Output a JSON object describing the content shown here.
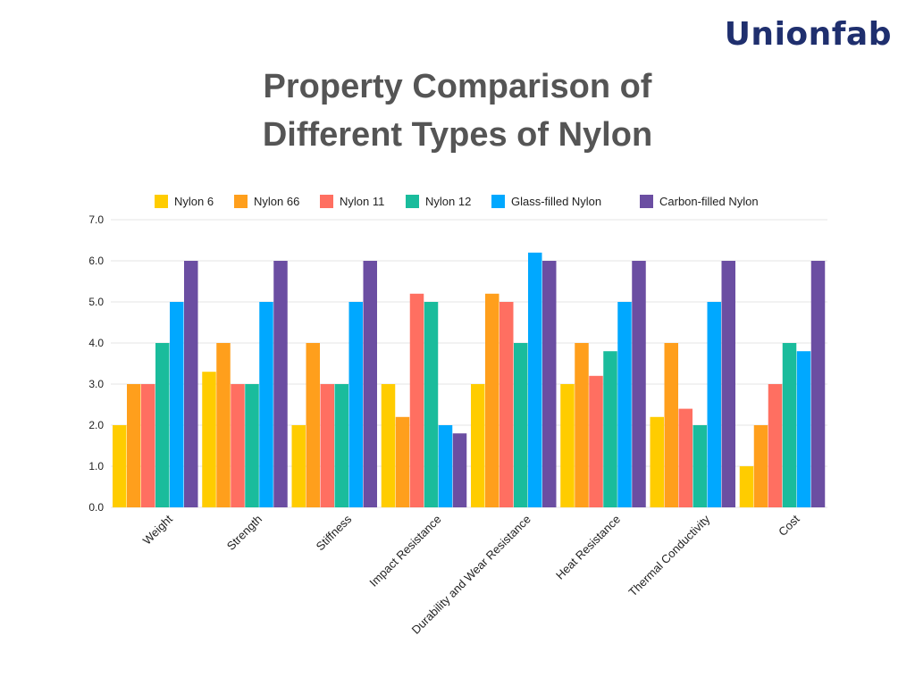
{
  "brand": {
    "logo_text": "Unionfab"
  },
  "title": {
    "line1": "Property Comparison of",
    "line2": "Different Types of Nylon"
  },
  "chart_data": {
    "type": "bar",
    "title": "Property Comparison of Different Types of Nylon",
    "categories": [
      "Weight",
      "Strength",
      "Stiffness",
      "Impact Resistance",
      "Durability and Wear Resistance",
      "Heat Resistance",
      "Thermal Conductivity",
      "Cost"
    ],
    "ylim": [
      0,
      7
    ],
    "yticks": [
      "0.0",
      "1.0",
      "2.0",
      "3.0",
      "4.0",
      "5.0",
      "6.0",
      "7.0"
    ],
    "grid": true,
    "legend_position": "top",
    "series": [
      {
        "name": "Nylon 6",
        "color": "#FFCC00",
        "values": [
          2,
          3.3,
          2,
          3,
          3,
          3,
          2.2,
          1
        ]
      },
      {
        "name": "Nylon 66",
        "color": "#FF9F1C",
        "values": [
          3,
          4,
          4,
          2.2,
          5.2,
          4,
          4,
          2
        ]
      },
      {
        "name": "Nylon 11",
        "color": "#FF6F61",
        "values": [
          3,
          3,
          3,
          5.2,
          5,
          3.2,
          2.4,
          3
        ]
      },
      {
        "name": "Nylon 12",
        "color": "#1ABC9C",
        "values": [
          4,
          3,
          3,
          5,
          4,
          3.8,
          2,
          4
        ]
      },
      {
        "name": "Glass-filled Nylon",
        "color": "#00A8FF",
        "values": [
          5,
          5,
          5,
          2,
          6.2,
          5,
          5,
          3.8
        ]
      },
      {
        "name": "Carbon-filled Nylon",
        "color": "#6B4EA2",
        "values": [
          6,
          6,
          6,
          1.8,
          6,
          6,
          6,
          6
        ]
      }
    ]
  }
}
